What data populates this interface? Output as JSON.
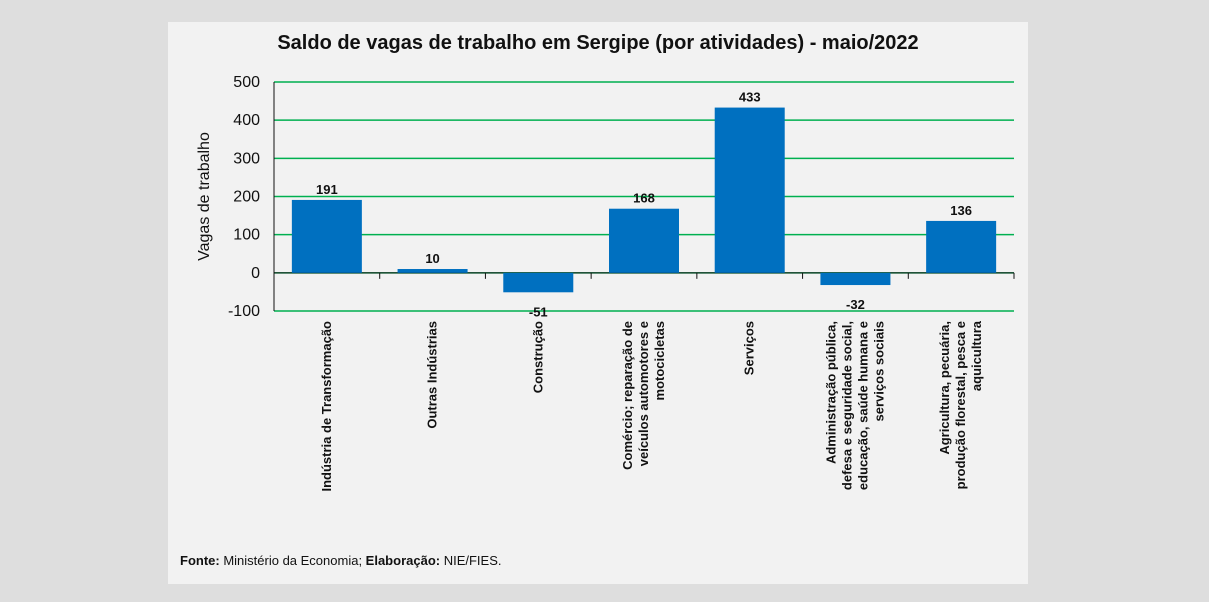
{
  "chart_data": {
    "type": "bar",
    "title": "Saldo de vagas de trabalho em Sergipe (por atividades) - maio/2022",
    "ylabel": "Vagas de trabalho",
    "xlabel": "",
    "ylim": [
      -100,
      500
    ],
    "yticks": [
      -100,
      0,
      100,
      200,
      300,
      400,
      500
    ],
    "grid": true,
    "categories": [
      "Indústria de Transformação",
      "Outras Indústrias",
      "Construção",
      "Comércio; reparação de veículos automotores e motocicletas",
      "Serviços",
      "Administração pública, defesa e seguridade social, educação, saúde humana e serviços sociais",
      "Agricultura, pecuária, produção florestal, pesca e aquicultura"
    ],
    "category_lines": [
      [
        "Indústria de Transformação"
      ],
      [
        "Outras Indústrias"
      ],
      [
        "Construção"
      ],
      [
        "Comércio; reparação de",
        "veículos automotores e",
        "motocicletas"
      ],
      [
        "Serviços"
      ],
      [
        "Administração pública,",
        "defesa e seguridade social,",
        "educação, saúde humana e",
        "serviços sociais"
      ],
      [
        "Agricultura, pecuária,",
        "produção florestal, pesca e",
        "aquicultura"
      ]
    ],
    "values": [
      191,
      10,
      -51,
      168,
      433,
      -32,
      136
    ],
    "colors": {
      "bar": "#0070c0",
      "grid": "#00b050",
      "axis": "#111111"
    }
  },
  "source": {
    "fonte_label": "Fonte:",
    "fonte_text": " Ministério da Economia; ",
    "elab_label": "Elaboração:",
    "elab_text": " NIE/FIES."
  }
}
